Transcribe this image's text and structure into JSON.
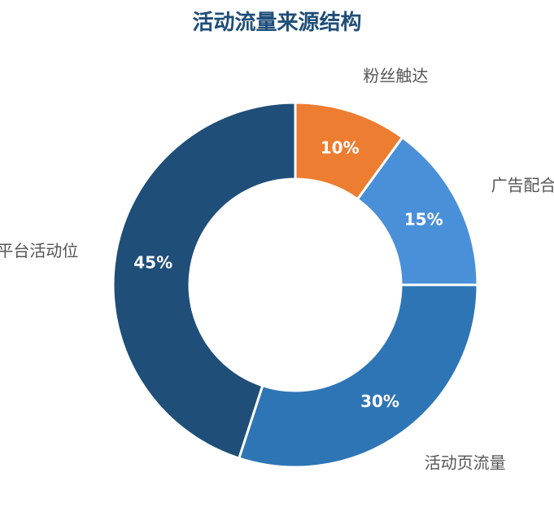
{
  "chart_data": {
    "type": "pie",
    "donut": true,
    "title": "活动流量来源结构",
    "categories": [
      "粉丝触达",
      "广告配合",
      "活动页流量",
      "平台活动位"
    ],
    "values": [
      10,
      15,
      30,
      45
    ],
    "value_labels": [
      "10%",
      "15%",
      "30%",
      "45%"
    ],
    "colors": [
      "#ed7d31",
      "#4a90d9",
      "#2e75b6",
      "#1f4e79"
    ],
    "start": "12 o'clock",
    "direction": "clockwise",
    "labels_placement": "outside"
  }
}
